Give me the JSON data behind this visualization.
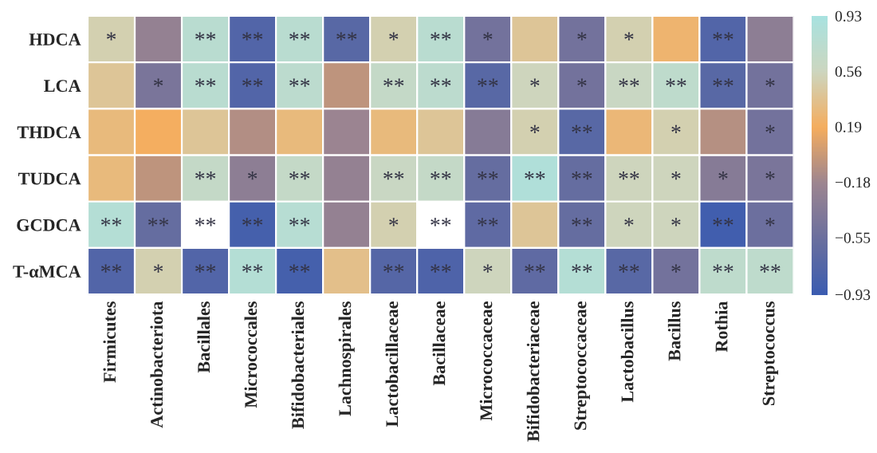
{
  "chart_data": {
    "type": "heatmap",
    "categories": [
      "Firmicutes",
      "Actinobacteriota",
      "Bacillales",
      "Micrococcales",
      "Bifidobacteriales",
      "Lachnospirales",
      "Lactobacillaceae",
      "Bacillaceae",
      "Micrococcaceae",
      "Bifidobacteriaceae",
      "Streptococcaceae",
      "Lactobacillus",
      "Bacillus",
      "Rothia",
      "Streptococcus"
    ],
    "y_categories": [
      "HDCA",
      "LCA",
      "THDCA",
      "TUDCA",
      "GCDCA",
      "T-αMCA"
    ],
    "cells": [
      [
        0.5,
        -0.25,
        0.75,
        -0.75,
        0.75,
        -0.7,
        0.5,
        0.75,
        -0.5,
        0.4,
        -0.5,
        0.5,
        0.25,
        -0.75,
        -0.3
      ],
      [
        0.4,
        -0.45,
        0.75,
        -0.75,
        0.72,
        -0.05,
        0.65,
        0.72,
        -0.7,
        0.55,
        -0.5,
        0.6,
        0.7,
        -0.7,
        -0.5
      ],
      [
        0.3,
        0.19,
        0.4,
        -0.1,
        0.3,
        -0.2,
        0.3,
        0.4,
        -0.35,
        0.5,
        -0.7,
        0.28,
        0.5,
        -0.08,
        -0.5
      ],
      [
        0.3,
        -0.05,
        0.65,
        -0.3,
        0.65,
        -0.25,
        0.6,
        0.65,
        -0.6,
        0.85,
        -0.6,
        0.55,
        0.55,
        -0.35,
        -0.45
      ],
      [
        0.8,
        -0.6,
        null,
        -0.85,
        0.78,
        -0.25,
        0.5,
        null,
        -0.65,
        0.4,
        -0.6,
        0.55,
        0.55,
        -0.88,
        -0.55
      ],
      [
        -0.75,
        0.5,
        -0.75,
        0.8,
        -0.85,
        0.35,
        -0.72,
        -0.78,
        0.55,
        -0.65,
        0.8,
        -0.7,
        -0.5,
        0.7,
        0.7
      ]
    ],
    "cell_labels": [
      [
        "*",
        null,
        "**",
        "**",
        "**",
        "**",
        "*",
        "**",
        "*",
        null,
        "*",
        "*",
        null,
        "**",
        null
      ],
      [
        null,
        "*",
        "**",
        "**",
        "**",
        null,
        "**",
        "**",
        "**",
        "*",
        "*",
        "**",
        "**",
        "**",
        "*"
      ],
      [
        null,
        null,
        null,
        null,
        null,
        null,
        null,
        null,
        null,
        "*",
        "**",
        null,
        "*",
        null,
        "*"
      ],
      [
        null,
        null,
        "**",
        "*",
        "**",
        null,
        "**",
        "**",
        "**",
        "**",
        "**",
        "**",
        "*",
        "*",
        "*"
      ],
      [
        "**",
        "**",
        "**",
        "**",
        "**",
        null,
        "*",
        "**",
        "**",
        null,
        "**",
        "*",
        "*",
        "**",
        "*"
      ],
      [
        "**",
        "*",
        "**",
        "**",
        "**",
        null,
        "**",
        "**",
        "*",
        "**",
        "**",
        "**",
        "*",
        "**",
        "**"
      ]
    ],
    "colors": [
      "#3b5cb0",
      "#6b6f9e",
      "#9d8590",
      "#f5ad5e",
      "#cdd6bf",
      "#a8e2e0"
    ],
    "clim": [
      -0.93,
      0.93
    ],
    "cticks": [
      0.93,
      0.56,
      0.19,
      {
        "value": -0.18,
        "label": "−0.18"
      },
      {
        "value": -0.55,
        "label": "−0.55"
      },
      {
        "value": -0.93,
        "label": "−0.93"
      }
    ]
  }
}
